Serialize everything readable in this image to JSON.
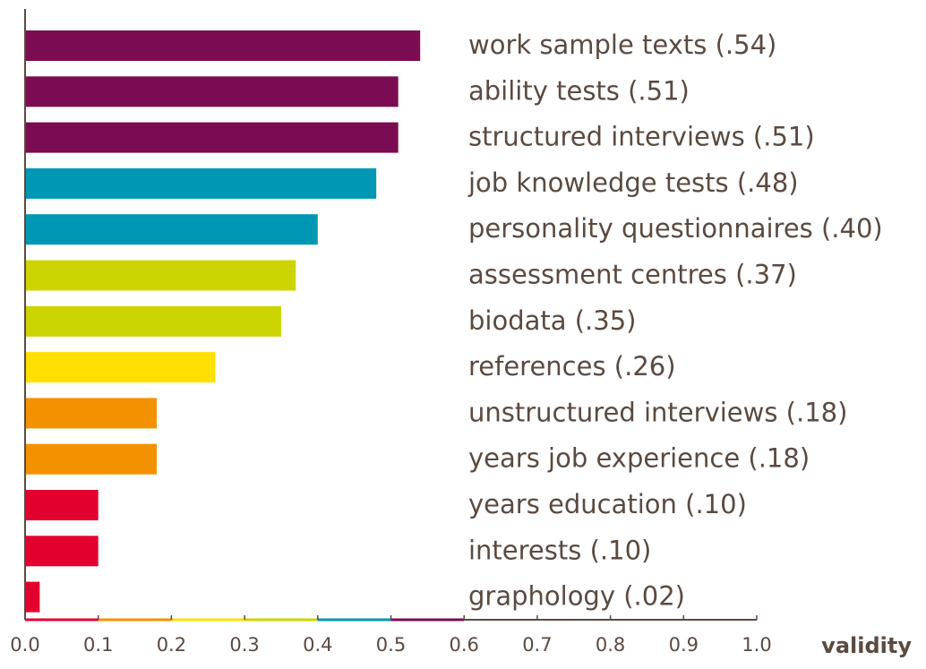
{
  "chart_data": {
    "type": "barh",
    "categories": [
      "work sample texts (.54)",
      "ability tests (.51)",
      "structured interviews (.51)",
      "job knowledge tests (.48)",
      "personality questionnaires (.40)",
      "assessment centres (.37)",
      "biodata (.35)",
      "references (.26)",
      "unstructured interviews (.18)",
      "years job experience (.18)",
      "years education (.10)",
      "interests (.10)",
      "graphology (.02)"
    ],
    "values": [
      0.54,
      0.51,
      0.51,
      0.48,
      0.4,
      0.37,
      0.35,
      0.26,
      0.18,
      0.18,
      0.1,
      0.1,
      0.02
    ],
    "colors": [
      "#7b0c52",
      "#7b0c52",
      "#7b0c52",
      "#0097b5",
      "#0097b5",
      "#ccd400",
      "#ccd400",
      "#ffe000",
      "#f39200",
      "#f39200",
      "#e2002f",
      "#e2002f",
      "#e2002f"
    ],
    "xlabel": "validity",
    "xlim": [
      0,
      1
    ],
    "xticks": [
      {
        "value": 0,
        "label": "0.0"
      },
      0.1,
      0.2,
      0.3,
      0.4,
      0.5,
      0.6,
      0.7,
      0.8,
      0.9,
      {
        "value": 1,
        "label": "1.0"
      }
    ],
    "axis_band_colors": [
      "#e2002f",
      "#f39200",
      "#ffe000",
      "#ccd400",
      "#0097b5",
      "#7b0c52"
    ]
  }
}
